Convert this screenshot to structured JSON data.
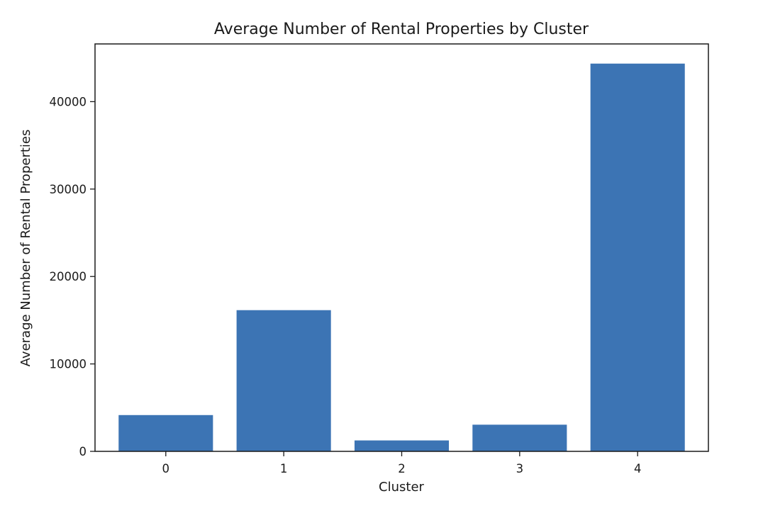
{
  "chart_data": {
    "type": "bar",
    "title": "Average Number of Rental Properties by Cluster",
    "xlabel": "Cluster",
    "ylabel": "Average Number of Rental Properties",
    "categories": [
      "0",
      "1",
      "2",
      "3",
      "4"
    ],
    "values": [
      4150,
      16150,
      1250,
      3050,
      44350
    ],
    "ylim": [
      0,
      46600
    ],
    "yticks": [
      0,
      10000,
      20000,
      30000,
      40000
    ],
    "grid": false,
    "colors": {
      "bar": "#3c74b4",
      "axis": "#1a1a1a"
    }
  }
}
